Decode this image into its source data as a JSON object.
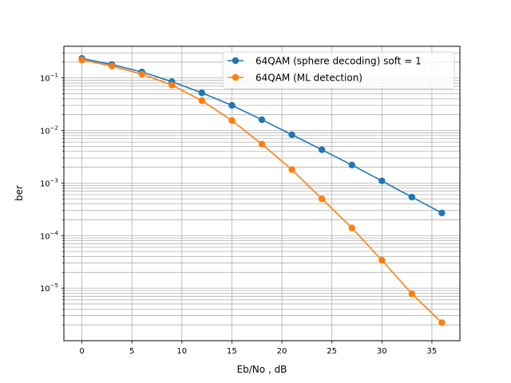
{
  "chart_data": {
    "type": "line",
    "title": "",
    "xlabel": "Eb/No , dB",
    "ylabel": "ber",
    "xscale": "linear",
    "yscale": "log",
    "xlim": [
      -1.8,
      37.8
    ],
    "ylim": [
      1e-06,
      0.4
    ],
    "xticks": [
      0,
      5,
      10,
      15,
      20,
      25,
      30,
      35
    ],
    "xtick_labels": [
      "0",
      "5",
      "10",
      "15",
      "20",
      "25",
      "30",
      "35"
    ],
    "yticks": [
      1e-05,
      0.0001,
      0.001,
      0.01,
      0.1
    ],
    "ytick_base_labels": [
      "10",
      "10",
      "10",
      "10",
      "10"
    ],
    "ytick_exponent_labels": [
      "−5",
      "−4",
      "−3",
      "−2",
      "−1"
    ],
    "grid": true,
    "grid_which": "both",
    "legend_position": "top-right",
    "x": [
      0,
      3,
      6,
      9,
      12,
      15,
      18,
      21,
      24,
      27,
      30,
      33,
      36
    ],
    "series": [
      {
        "name": "64QAM (sphere decoding) soft = 1",
        "color": "#1f77b4",
        "marker": "circle",
        "values": [
          0.235,
          0.18,
          0.13,
          0.085,
          0.052,
          0.03,
          0.016,
          0.0083,
          0.0043,
          0.0022,
          0.0011,
          0.00054,
          0.00027
        ]
      },
      {
        "name": "64QAM (ML detection)",
        "color": "#ff7f0e",
        "marker": "circle",
        "values": [
          0.22,
          0.168,
          0.118,
          0.073,
          0.037,
          0.0155,
          0.0055,
          0.0018,
          0.0005,
          0.00014,
          3.4e-05,
          7.8e-06,
          2.2e-06
        ]
      }
    ]
  }
}
